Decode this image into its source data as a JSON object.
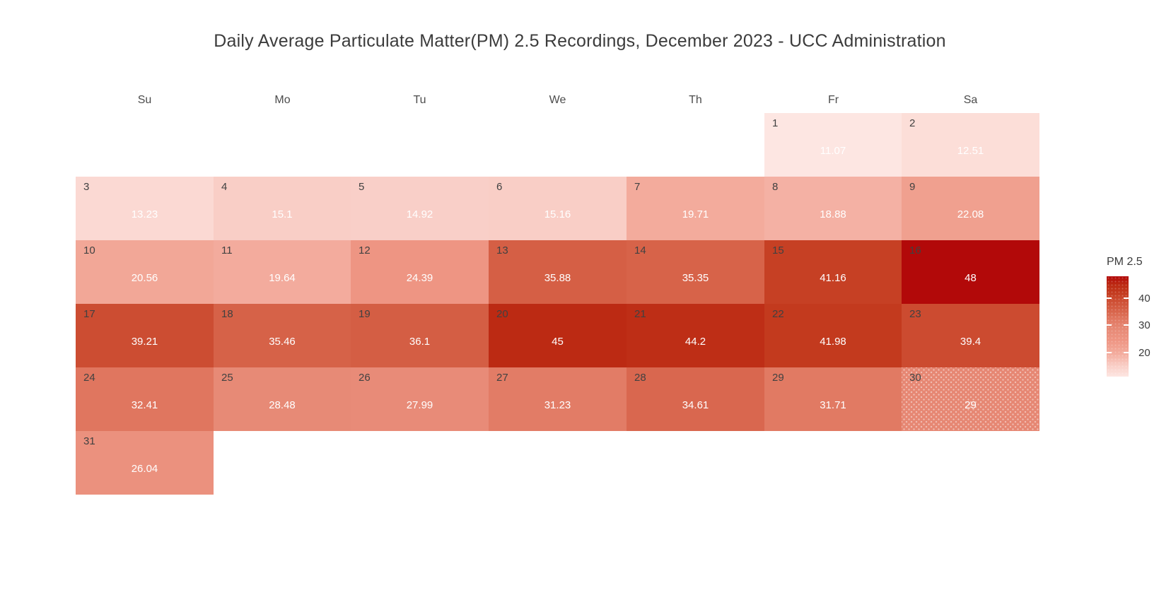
{
  "title": "Daily Average Particulate Matter(PM) 2.5 Recordings, December 2023 - UCC Administration",
  "weekday_headers": [
    "Su",
    "Mo",
    "Tu",
    "We",
    "Th",
    "Fr",
    "Sa"
  ],
  "legend": {
    "title": "PM 2.5",
    "ticks": [
      "40",
      "30",
      "20"
    ],
    "tick_values": [
      40,
      30,
      20
    ]
  },
  "chart_data": {
    "type": "heatmap",
    "subtype": "calendar-month",
    "title": "Daily Average Particulate Matter(PM) 2.5 Recordings, December 2023 - UCC Administration",
    "month": "December",
    "year": 2023,
    "first_day_weekday": "Fr",
    "weekdays": [
      "Su",
      "Mo",
      "Tu",
      "We",
      "Th",
      "Fr",
      "Sa"
    ],
    "value_name": "PM 2.5",
    "colorbar_range": [
      11.07,
      48
    ],
    "days": [
      {
        "day": 1,
        "label": "11.07",
        "value": 11.07
      },
      {
        "day": 2,
        "label": "12.51",
        "value": 12.51
      },
      {
        "day": 3,
        "label": "13.23",
        "value": 13.23
      },
      {
        "day": 4,
        "label": "15.1",
        "value": 15.1
      },
      {
        "day": 5,
        "label": "14.92",
        "value": 14.92
      },
      {
        "day": 6,
        "label": "15.16",
        "value": 15.16
      },
      {
        "day": 7,
        "label": "19.71",
        "value": 19.71
      },
      {
        "day": 8,
        "label": "18.88",
        "value": 18.88
      },
      {
        "day": 9,
        "label": "22.08",
        "value": 22.08
      },
      {
        "day": 10,
        "label": "20.56",
        "value": 20.56
      },
      {
        "day": 11,
        "label": "19.64",
        "value": 19.64
      },
      {
        "day": 12,
        "label": "24.39",
        "value": 24.39
      },
      {
        "day": 13,
        "label": "35.88",
        "value": 35.88
      },
      {
        "day": 14,
        "label": "35.35",
        "value": 35.35
      },
      {
        "day": 15,
        "label": "41.16",
        "value": 41.16
      },
      {
        "day": 16,
        "label": "48",
        "value": 48
      },
      {
        "day": 17,
        "label": "39.21",
        "value": 39.21
      },
      {
        "day": 18,
        "label": "35.46",
        "value": 35.46
      },
      {
        "day": 19,
        "label": "36.1",
        "value": 36.1
      },
      {
        "day": 20,
        "label": "45",
        "value": 45
      },
      {
        "day": 21,
        "label": "44.2",
        "value": 44.2
      },
      {
        "day": 22,
        "label": "41.98",
        "value": 41.98
      },
      {
        "day": 23,
        "label": "39.4",
        "value": 39.4
      },
      {
        "day": 24,
        "label": "32.41",
        "value": 32.41
      },
      {
        "day": 25,
        "label": "28.48",
        "value": 28.48
      },
      {
        "day": 26,
        "label": "27.99",
        "value": 27.99
      },
      {
        "day": 27,
        "label": "31.23",
        "value": 31.23
      },
      {
        "day": 28,
        "label": "34.61",
        "value": 34.61
      },
      {
        "day": 29,
        "label": "31.71",
        "value": 31.71
      },
      {
        "day": 30,
        "label": "29",
        "value": 29,
        "pattern": "dots"
      },
      {
        "day": 31,
        "label": "26.04",
        "value": 26.04
      }
    ],
    "colorscale": [
      {
        "value": 11.07,
        "color": "#fde6e2"
      },
      {
        "value": 15.0,
        "color": "#f9cfc7"
      },
      {
        "value": 19.7,
        "color": "#f3ab9c"
      },
      {
        "value": 24.4,
        "color": "#ee9583"
      },
      {
        "value": 28.5,
        "color": "#e78a76"
      },
      {
        "value": 32.4,
        "color": "#e0765f"
      },
      {
        "value": 35.9,
        "color": "#d55f45"
      },
      {
        "value": 39.3,
        "color": "#cc4c31"
      },
      {
        "value": 42.0,
        "color": "#c33a1e"
      },
      {
        "value": 45.0,
        "color": "#bc2a13"
      },
      {
        "value": 48.0,
        "color": "#b20909"
      }
    ],
    "text_colors": {
      "day_number": "#414141",
      "value_label": "#ffffff"
    }
  }
}
